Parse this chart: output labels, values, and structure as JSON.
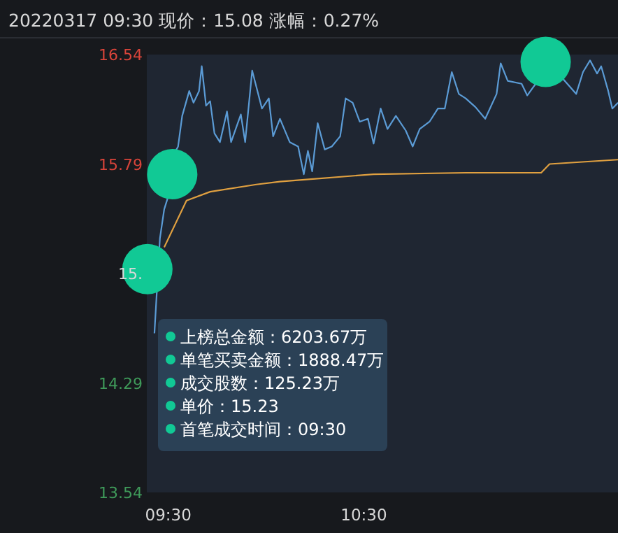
{
  "chart_data": {
    "type": "line",
    "title": "20220317 09:30 现价：15.08 涨幅：0.27%",
    "xlim": [
      9.39,
      11.8
    ],
    "xticks": [
      {
        "value": 9.5,
        "label": "09:30"
      },
      {
        "value": 10.5,
        "label": "10:30"
      }
    ],
    "ylim": [
      13.54,
      16.54
    ],
    "yticks": [
      13.54,
      14.29,
      {
        "value": 15.04,
        "label": "15."
      },
      15.79,
      16.54
    ],
    "grid": false,
    "annotations": [
      "上榜总金额：6203.67万",
      "单笔买卖金额：1888.47万",
      "成交股数：125.23万",
      "单价：15.23",
      "首笔成交时间：09:30"
    ],
    "series": [
      {
        "color": "#5b9bd5",
        "x": [
          9.429,
          9.457,
          9.479,
          9.5,
          9.529,
          9.55,
          9.571,
          9.607,
          9.629,
          9.657,
          9.671,
          9.693,
          9.714,
          9.736,
          9.764,
          9.8,
          9.821,
          9.871,
          9.893,
          9.929,
          9.979,
          10.014,
          10.036,
          10.071,
          10.121,
          10.164,
          10.193,
          10.214,
          10.236,
          10.264,
          10.3,
          10.336,
          10.379,
          10.407,
          10.443,
          10.479,
          10.521,
          10.55,
          10.586,
          10.621,
          10.664,
          10.714,
          10.75,
          10.786,
          10.836,
          10.879,
          10.914,
          10.95,
          10.986,
          11.021,
          11.071,
          11.121,
          11.179,
          11.2,
          11.236,
          11.307,
          11.336,
          11.379,
          11.521,
          11.586,
          11.621,
          11.657,
          11.693,
          11.714,
          11.75,
          11.771,
          11.8
        ],
        "values": [
          14.63,
          15.28,
          15.48,
          15.57,
          15.86,
          15.91,
          16.12,
          16.29,
          16.21,
          16.29,
          16.46,
          16.19,
          16.22,
          16.0,
          15.94,
          16.15,
          15.94,
          16.13,
          15.94,
          16.43,
          16.17,
          16.24,
          15.98,
          16.1,
          15.94,
          15.91,
          15.72,
          15.88,
          15.74,
          16.07,
          15.89,
          15.91,
          15.98,
          16.24,
          16.21,
          16.08,
          16.1,
          15.93,
          16.17,
          16.03,
          16.12,
          16.02,
          15.91,
          16.03,
          16.08,
          16.17,
          16.17,
          16.42,
          16.27,
          16.24,
          16.18,
          16.1,
          16.27,
          16.48,
          16.36,
          16.34,
          16.26,
          16.34,
          16.37,
          16.27,
          16.42,
          16.5,
          16.41,
          16.46,
          16.29,
          16.17,
          16.21
        ]
      },
      {
        "color": "#e0a040",
        "x": [
          9.479,
          9.593,
          9.714,
          9.95,
          10.071,
          10.55,
          11.021,
          11.407,
          11.45,
          11.8
        ],
        "values": [
          15.22,
          15.54,
          15.6,
          15.65,
          15.67,
          15.72,
          15.73,
          15.73,
          15.79,
          15.82
        ]
      },
      {
        "type": "scatter",
        "color": "#11c995",
        "marker": "circle",
        "x": [
          9.393,
          9.52,
          11.43
        ],
        "values": [
          15.07,
          15.72,
          16.49
        ]
      }
    ]
  }
}
